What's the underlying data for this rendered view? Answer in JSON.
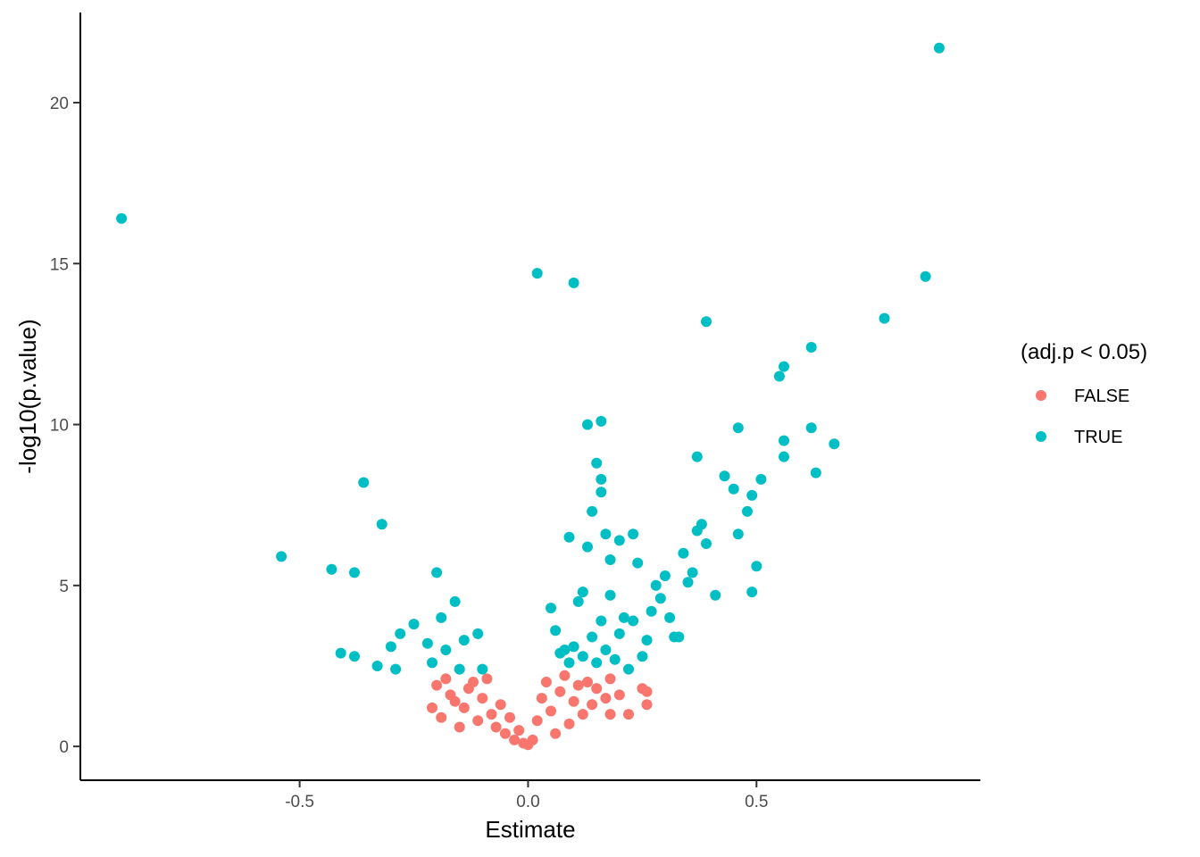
{
  "chart_data": {
    "type": "scatter",
    "xlabel": "Estimate",
    "ylabel": "-log10(p.value)",
    "xlim": [
      -0.98,
      0.99
    ],
    "ylim": [
      -1.05,
      22.8
    ],
    "x_ticks": [
      -0.5,
      0.0,
      0.5
    ],
    "x_tick_labels": [
      "-0.5",
      "0.0",
      "0.5"
    ],
    "y_ticks": [
      0,
      5,
      10,
      15,
      20
    ],
    "y_tick_labels": [
      "0",
      "5",
      "10",
      "15",
      "20"
    ],
    "grid": false,
    "legend": {
      "title": "(adj.p < 0.05)",
      "placement": "right",
      "entries": [
        {
          "label": "FALSE",
          "color": "#F8766D"
        },
        {
          "label": "TRUE",
          "color": "#00BFC4"
        }
      ]
    },
    "series": [
      {
        "name": "FALSE",
        "color": "#F8766D",
        "points": [
          [
            -0.2,
            1.9
          ],
          [
            -0.21,
            1.2
          ],
          [
            -0.18,
            2.1
          ],
          [
            -0.17,
            1.6
          ],
          [
            -0.16,
            1.4
          ],
          [
            -0.15,
            0.6
          ],
          [
            -0.14,
            1.2
          ],
          [
            -0.13,
            1.8
          ],
          [
            -0.12,
            2.0
          ],
          [
            -0.11,
            0.8
          ],
          [
            -0.1,
            1.5
          ],
          [
            -0.09,
            2.1
          ],
          [
            -0.08,
            1.0
          ],
          [
            -0.07,
            0.6
          ],
          [
            -0.06,
            1.3
          ],
          [
            -0.05,
            0.4
          ],
          [
            -0.04,
            0.9
          ],
          [
            -0.03,
            0.2
          ],
          [
            -0.02,
            0.5
          ],
          [
            -0.01,
            0.1
          ],
          [
            0.0,
            0.05
          ],
          [
            0.01,
            0.2
          ],
          [
            0.02,
            0.8
          ],
          [
            0.03,
            1.5
          ],
          [
            0.04,
            2.0
          ],
          [
            0.05,
            1.1
          ],
          [
            0.06,
            0.4
          ],
          [
            0.07,
            1.7
          ],
          [
            0.08,
            2.2
          ],
          [
            0.09,
            0.7
          ],
          [
            0.1,
            1.4
          ],
          [
            0.11,
            1.9
          ],
          [
            0.12,
            1.0
          ],
          [
            0.13,
            2.0
          ],
          [
            0.14,
            1.3
          ],
          [
            0.15,
            1.8
          ],
          [
            0.17,
            1.5
          ],
          [
            0.18,
            2.1
          ],
          [
            0.2,
            1.6
          ],
          [
            0.22,
            1.0
          ],
          [
            0.25,
            1.8
          ],
          [
            0.26,
            1.7
          ],
          [
            0.26,
            1.3
          ],
          [
            0.18,
            1.0
          ],
          [
            -0.19,
            0.9
          ]
        ]
      },
      {
        "name": "TRUE",
        "color": "#00BFC4",
        "points": [
          [
            -0.89,
            16.4
          ],
          [
            -0.54,
            5.9
          ],
          [
            -0.43,
            5.5
          ],
          [
            -0.38,
            5.4
          ],
          [
            -0.36,
            8.2
          ],
          [
            -0.32,
            6.9
          ],
          [
            -0.41,
            2.9
          ],
          [
            -0.38,
            2.8
          ],
          [
            -0.33,
            2.5
          ],
          [
            -0.3,
            3.1
          ],
          [
            -0.29,
            2.4
          ],
          [
            -0.28,
            3.5
          ],
          [
            -0.25,
            3.8
          ],
          [
            -0.22,
            3.2
          ],
          [
            -0.21,
            2.6
          ],
          [
            -0.2,
            5.4
          ],
          [
            -0.19,
            4.0
          ],
          [
            -0.18,
            3.0
          ],
          [
            -0.16,
            4.5
          ],
          [
            -0.15,
            2.4
          ],
          [
            -0.14,
            3.3
          ],
          [
            -0.11,
            3.5
          ],
          [
            -0.1,
            2.4
          ],
          [
            0.02,
            14.7
          ],
          [
            0.1,
            14.4
          ],
          [
            0.13,
            10.0
          ],
          [
            0.16,
            10.1
          ],
          [
            0.15,
            8.8
          ],
          [
            0.16,
            8.3
          ],
          [
            0.16,
            7.9
          ],
          [
            0.14,
            7.3
          ],
          [
            0.09,
            6.5
          ],
          [
            0.13,
            6.2
          ],
          [
            0.17,
            6.6
          ],
          [
            0.2,
            6.4
          ],
          [
            0.23,
            6.6
          ],
          [
            0.18,
            5.8
          ],
          [
            0.24,
            5.7
          ],
          [
            0.11,
            4.5
          ],
          [
            0.12,
            4.8
          ],
          [
            0.05,
            4.3
          ],
          [
            0.06,
            3.6
          ],
          [
            0.07,
            2.9
          ],
          [
            0.08,
            3.0
          ],
          [
            0.09,
            2.6
          ],
          [
            0.1,
            3.1
          ],
          [
            0.12,
            2.8
          ],
          [
            0.14,
            3.4
          ],
          [
            0.15,
            2.6
          ],
          [
            0.17,
            3.0
          ],
          [
            0.19,
            2.7
          ],
          [
            0.2,
            3.5
          ],
          [
            0.22,
            2.4
          ],
          [
            0.23,
            3.9
          ],
          [
            0.25,
            2.8
          ],
          [
            0.27,
            4.2
          ],
          [
            0.28,
            5.0
          ],
          [
            0.3,
            5.3
          ],
          [
            0.32,
            3.4
          ],
          [
            0.34,
            6.0
          ],
          [
            0.36,
            5.4
          ],
          [
            0.37,
            6.7
          ],
          [
            0.38,
            6.9
          ],
          [
            0.39,
            6.3
          ],
          [
            0.37,
            9.0
          ],
          [
            0.39,
            13.2
          ],
          [
            0.41,
            4.7
          ],
          [
            0.43,
            8.4
          ],
          [
            0.45,
            8.0
          ],
          [
            0.46,
            6.6
          ],
          [
            0.46,
            9.9
          ],
          [
            0.48,
            7.3
          ],
          [
            0.49,
            7.8
          ],
          [
            0.5,
            5.6
          ],
          [
            0.49,
            4.8
          ],
          [
            0.51,
            8.3
          ],
          [
            0.55,
            11.5
          ],
          [
            0.56,
            11.8
          ],
          [
            0.56,
            9.5
          ],
          [
            0.56,
            9.0
          ],
          [
            0.62,
            12.4
          ],
          [
            0.62,
            9.9
          ],
          [
            0.63,
            8.5
          ],
          [
            0.67,
            9.4
          ],
          [
            0.78,
            13.3
          ],
          [
            0.87,
            14.6
          ],
          [
            0.9,
            21.7
          ],
          [
            0.29,
            4.6
          ],
          [
            0.31,
            4.0
          ],
          [
            0.33,
            3.4
          ],
          [
            0.35,
            5.1
          ],
          [
            0.26,
            3.3
          ],
          [
            0.21,
            4.0
          ],
          [
            0.18,
            4.7
          ],
          [
            0.16,
            3.9
          ]
        ]
      }
    ]
  }
}
